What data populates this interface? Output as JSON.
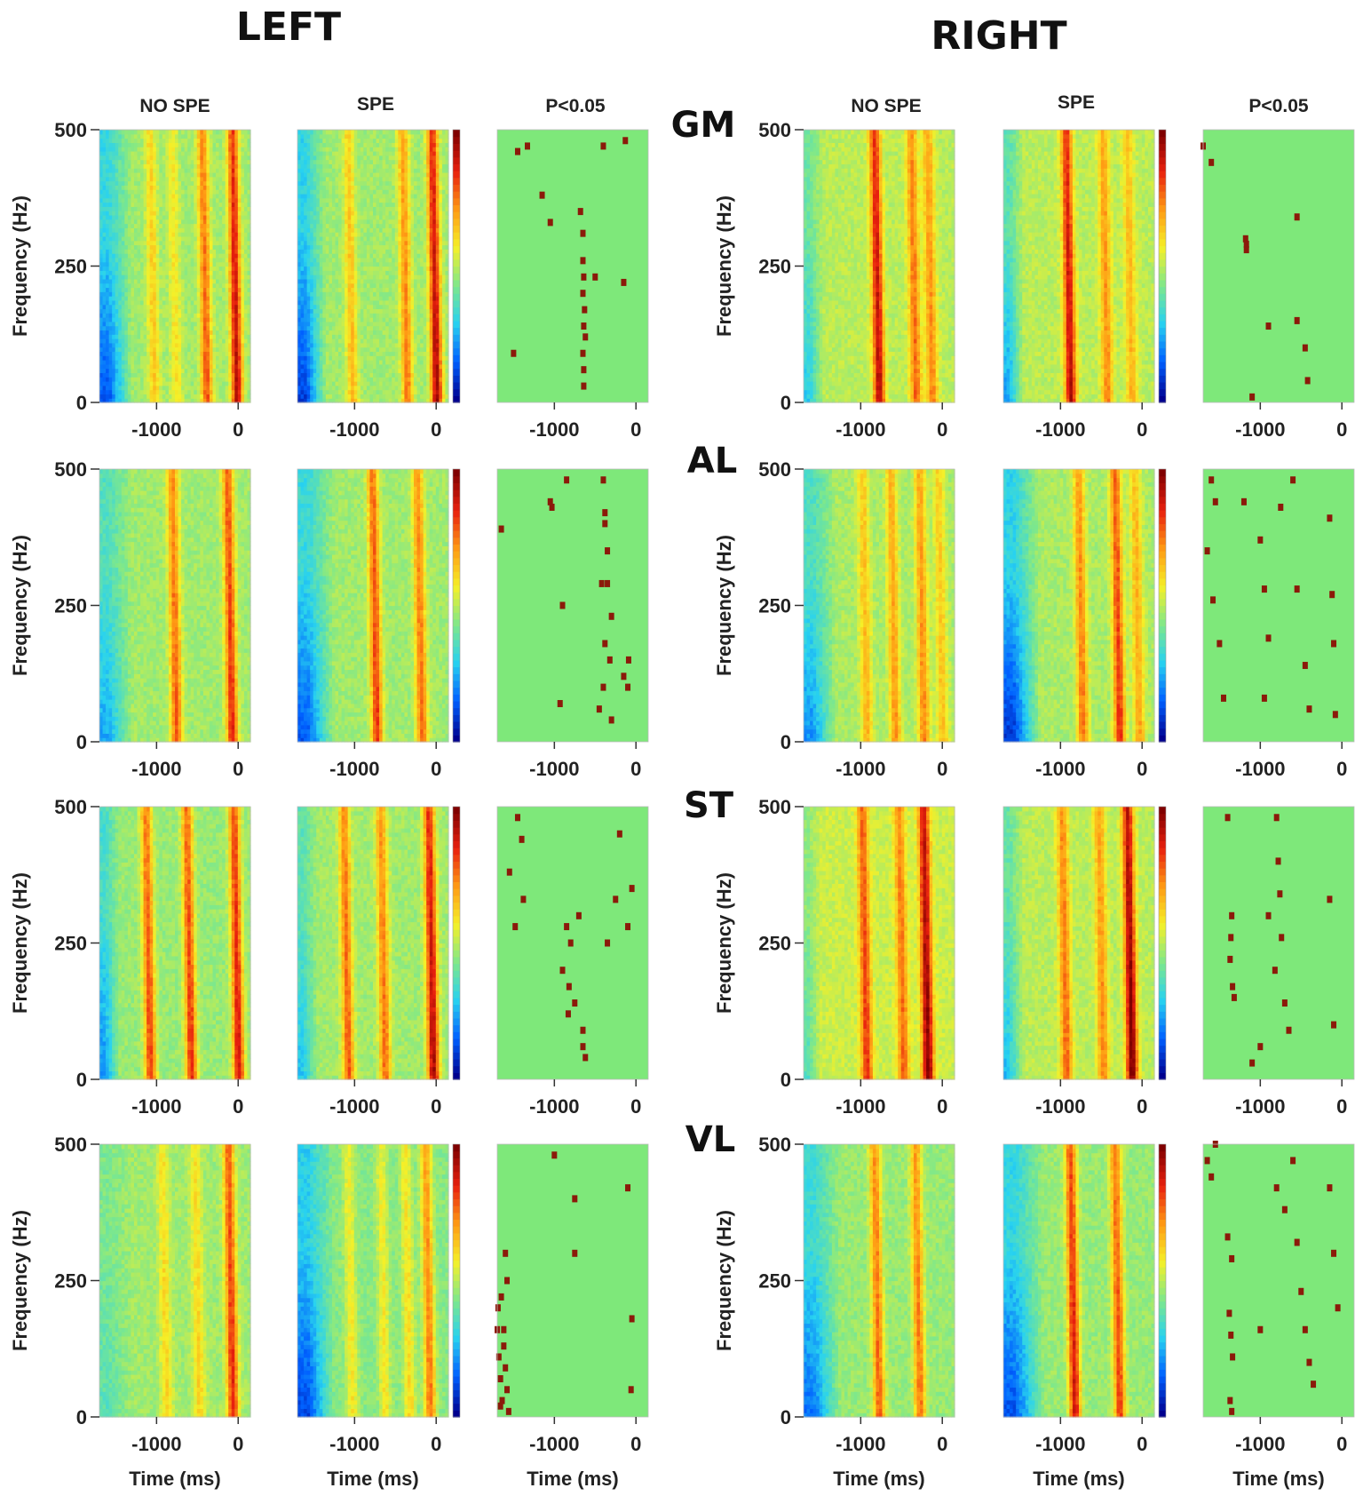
{
  "figure": {
    "side_titles": [
      "LEFT",
      "RIGHT"
    ],
    "column_titles": [
      "NO SPE",
      "SPE",
      "P<0.05"
    ],
    "muscles": [
      "GM",
      "AL",
      "ST",
      "VL"
    ],
    "colors": {
      "background": "#ffffff",
      "significance_background": "#7ee87a",
      "significance_marker": "#8b1a0a",
      "colormap": [
        "#00008f",
        "#0060ff",
        "#28d2f0",
        "#7fe88a",
        "#f5f028",
        "#ff9a14",
        "#e8200e",
        "#800000"
      ]
    }
  },
  "chart_data": {
    "type": "heatmap",
    "layout": "4 muscle rows x 2 sides x 3 columns",
    "xlabel": "Time (ms)",
    "ylabel": "Frequency (Hz)",
    "xlim": [
      -1700,
      150
    ],
    "ylim": [
      0,
      500
    ],
    "xticks": [
      -1000,
      0
    ],
    "yticks": [
      0,
      250,
      500
    ],
    "xtick_labels": [
      "-1000",
      "0"
    ],
    "ytick_labels": [
      "0",
      "250",
      "500"
    ],
    "panels": [
      {
        "side": "LEFT",
        "muscle": "GM",
        "condition": "NO SPE",
        "base": 0.47,
        "low_freq_dip": {
          "start": -1700,
          "end": -1300,
          "depth": 0.35
        },
        "bands": [
          {
            "t": -1050,
            "amp": 0.16
          },
          {
            "t": -780,
            "amp": 0.12
          },
          {
            "t": -410,
            "amp": 0.3
          },
          {
            "t": -40,
            "amp": 0.42
          }
        ]
      },
      {
        "side": "LEFT",
        "muscle": "GM",
        "condition": "SPE",
        "base": 0.47,
        "low_freq_dip": {
          "start": -1700,
          "end": -1350,
          "depth": 0.38
        },
        "bands": [
          {
            "t": -1050,
            "amp": 0.18
          },
          {
            "t": -380,
            "amp": 0.26
          },
          {
            "t": -20,
            "amp": 0.44
          }
        ]
      },
      {
        "side": "LEFT",
        "muscle": "GM",
        "condition": "P<0.05"
      },
      {
        "side": "RIGHT",
        "muscle": "GM",
        "condition": "NO SPE",
        "base": 0.5,
        "low_freq_dip": {
          "start": -1700,
          "end": -1450,
          "depth": 0.22
        },
        "bands": [
          {
            "t": -800,
            "amp": 0.4
          },
          {
            "t": -350,
            "amp": 0.26
          },
          {
            "t": -150,
            "amp": 0.22
          }
        ]
      },
      {
        "side": "RIGHT",
        "muscle": "GM",
        "condition": "SPE",
        "base": 0.5,
        "low_freq_dip": {
          "start": -1700,
          "end": -1450,
          "depth": 0.28
        },
        "bands": [
          {
            "t": -900,
            "amp": 0.4
          },
          {
            "t": -450,
            "amp": 0.22
          },
          {
            "t": -150,
            "amp": 0.16
          }
        ]
      },
      {
        "side": "RIGHT",
        "muscle": "GM",
        "condition": "P<0.05"
      },
      {
        "side": "LEFT",
        "muscle": "AL",
        "condition": "NO SPE",
        "base": 0.47,
        "low_freq_dip": {
          "start": -1700,
          "end": -1300,
          "depth": 0.24
        },
        "bands": [
          {
            "t": -780,
            "amp": 0.3
          },
          {
            "t": -100,
            "amp": 0.36
          }
        ]
      },
      {
        "side": "LEFT",
        "muscle": "AL",
        "condition": "SPE",
        "base": 0.47,
        "low_freq_dip": {
          "start": -1700,
          "end": -1250,
          "depth": 0.34
        },
        "bands": [
          {
            "t": -750,
            "amp": 0.34
          },
          {
            "t": -200,
            "amp": 0.28
          }
        ]
      },
      {
        "side": "LEFT",
        "muscle": "AL",
        "condition": "P<0.05"
      },
      {
        "side": "RIGHT",
        "muscle": "AL",
        "condition": "NO SPE",
        "base": 0.48,
        "low_freq_dip": {
          "start": -1700,
          "end": -1300,
          "depth": 0.28
        },
        "bands": [
          {
            "t": -950,
            "amp": 0.18
          },
          {
            "t": -600,
            "amp": 0.22
          },
          {
            "t": -250,
            "amp": 0.24
          },
          {
            "t": -20,
            "amp": 0.16
          }
        ]
      },
      {
        "side": "RIGHT",
        "muscle": "AL",
        "condition": "SPE",
        "base": 0.48,
        "low_freq_dip": {
          "start": -1700,
          "end": -1250,
          "depth": 0.4
        },
        "bands": [
          {
            "t": -750,
            "amp": 0.26
          },
          {
            "t": -300,
            "amp": 0.34
          },
          {
            "t": -60,
            "amp": 0.2
          }
        ]
      },
      {
        "side": "RIGHT",
        "muscle": "AL",
        "condition": "P<0.05"
      },
      {
        "side": "LEFT",
        "muscle": "ST",
        "condition": "NO SPE",
        "base": 0.46,
        "low_freq_dip": {
          "start": -1700,
          "end": -1450,
          "depth": 0.26
        },
        "bands": [
          {
            "t": -1100,
            "amp": 0.34
          },
          {
            "t": -600,
            "amp": 0.36
          },
          {
            "t": -20,
            "amp": 0.4
          }
        ]
      },
      {
        "side": "LEFT",
        "muscle": "ST",
        "condition": "SPE",
        "base": 0.47,
        "low_freq_dip": {
          "start": -1700,
          "end": -1450,
          "depth": 0.2
        },
        "bands": [
          {
            "t": -1100,
            "amp": 0.3
          },
          {
            "t": -650,
            "amp": 0.28
          },
          {
            "t": -60,
            "amp": 0.44
          }
        ]
      },
      {
        "side": "LEFT",
        "muscle": "ST",
        "condition": "P<0.05"
      },
      {
        "side": "RIGHT",
        "muscle": "ST",
        "condition": "NO SPE",
        "base": 0.52,
        "low_freq_dip": {
          "start": -1700,
          "end": -1500,
          "depth": 0.16
        },
        "bands": [
          {
            "t": -950,
            "amp": 0.3
          },
          {
            "t": -500,
            "amp": 0.24
          },
          {
            "t": -200,
            "amp": 0.44
          }
        ]
      },
      {
        "side": "RIGHT",
        "muscle": "ST",
        "condition": "SPE",
        "base": 0.5,
        "low_freq_dip": {
          "start": -1700,
          "end": -1450,
          "depth": 0.24
        },
        "bands": [
          {
            "t": -950,
            "amp": 0.26
          },
          {
            "t": -500,
            "amp": 0.22
          },
          {
            "t": -150,
            "amp": 0.48
          }
        ]
      },
      {
        "side": "RIGHT",
        "muscle": "ST",
        "condition": "P<0.05"
      },
      {
        "side": "LEFT",
        "muscle": "VL",
        "condition": "NO SPE",
        "base": 0.47,
        "low_freq_dip": {
          "start": -1700,
          "end": -1300,
          "depth": 0.1
        },
        "bands": [
          {
            "t": -900,
            "amp": 0.14
          },
          {
            "t": -500,
            "amp": 0.14
          },
          {
            "t": -90,
            "amp": 0.36
          }
        ]
      },
      {
        "side": "LEFT",
        "muscle": "VL",
        "condition": "SPE",
        "base": 0.44,
        "low_freq_dip": {
          "start": -1700,
          "end": -1250,
          "depth": 0.34
        },
        "bands": [
          {
            "t": -1050,
            "amp": 0.14
          },
          {
            "t": -650,
            "amp": 0.14
          },
          {
            "t": -350,
            "amp": 0.16
          },
          {
            "t": -100,
            "amp": 0.3
          }
        ]
      },
      {
        "side": "LEFT",
        "muscle": "VL",
        "condition": "P<0.05"
      },
      {
        "side": "RIGHT",
        "muscle": "VL",
        "condition": "NO SPE",
        "base": 0.46,
        "low_freq_dip": {
          "start": -1700,
          "end": -1250,
          "depth": 0.3
        },
        "bands": [
          {
            "t": -800,
            "amp": 0.3
          },
          {
            "t": -300,
            "amp": 0.28
          }
        ]
      },
      {
        "side": "RIGHT",
        "muscle": "VL",
        "condition": "SPE",
        "base": 0.46,
        "low_freq_dip": {
          "start": -1700,
          "end": -1200,
          "depth": 0.34
        },
        "bands": [
          {
            "t": -850,
            "amp": 0.4
          },
          {
            "t": -300,
            "amp": 0.34
          }
        ]
      },
      {
        "side": "RIGHT",
        "muscle": "VL",
        "condition": "P<0.05"
      }
    ],
    "significant_points": {
      "LEFT-GM": [
        [
          -1450,
          460
        ],
        [
          -1330,
          470
        ],
        [
          -1150,
          380
        ],
        [
          -1050,
          330
        ],
        [
          -680,
          350
        ],
        [
          -650,
          310
        ],
        [
          -650,
          260
        ],
        [
          -640,
          230
        ],
        [
          -650,
          200
        ],
        [
          -630,
          170
        ],
        [
          -640,
          140
        ],
        [
          -620,
          120
        ],
        [
          -650,
          90
        ],
        [
          -640,
          60
        ],
        [
          -640,
          30
        ],
        [
          -500,
          230
        ],
        [
          -400,
          470
        ],
        [
          -150,
          220
        ],
        [
          -130,
          480
        ],
        [
          -1500,
          90
        ]
      ],
      "LEFT-AL": [
        [
          -1650,
          390
        ],
        [
          -1050,
          440
        ],
        [
          -1030,
          430
        ],
        [
          -900,
          250
        ],
        [
          -930,
          70
        ],
        [
          -850,
          480
        ],
        [
          -400,
          480
        ],
        [
          -380,
          420
        ],
        [
          -380,
          400
        ],
        [
          -350,
          290
        ],
        [
          -420,
          290
        ],
        [
          -300,
          230
        ],
        [
          -380,
          180
        ],
        [
          -320,
          150
        ],
        [
          -400,
          100
        ],
        [
          -450,
          60
        ],
        [
          -300,
          40
        ],
        [
          -100,
          100
        ],
        [
          -90,
          150
        ],
        [
          -350,
          350
        ],
        [
          -150,
          120
        ]
      ],
      "LEFT-ST": [
        [
          -1450,
          480
        ],
        [
          -1400,
          440
        ],
        [
          -1550,
          380
        ],
        [
          -1380,
          330
        ],
        [
          -1480,
          280
        ],
        [
          -850,
          280
        ],
        [
          -800,
          250
        ],
        [
          -900,
          200
        ],
        [
          -820,
          170
        ],
        [
          -750,
          140
        ],
        [
          -830,
          120
        ],
        [
          -700,
          300
        ],
        [
          -650,
          90
        ],
        [
          -620,
          40
        ],
        [
          -650,
          60
        ],
        [
          -250,
          330
        ],
        [
          -350,
          250
        ],
        [
          -100,
          280
        ],
        [
          -50,
          350
        ],
        [
          -200,
          450
        ]
      ],
      "LEFT-VL": [
        [
          -1700,
          160
        ],
        [
          -1680,
          110
        ],
        [
          -1660,
          70
        ],
        [
          -1640,
          30
        ],
        [
          -1620,
          130
        ],
        [
          -1600,
          90
        ],
        [
          -1580,
          50
        ],
        [
          -1560,
          10
        ],
        [
          -1690,
          200
        ],
        [
          -1650,
          220
        ],
        [
          -1600,
          300
        ],
        [
          -1580,
          250
        ],
        [
          -1620,
          160
        ],
        [
          -1660,
          20
        ],
        [
          -1000,
          480
        ],
        [
          -750,
          400
        ],
        [
          -750,
          300
        ],
        [
          -100,
          420
        ],
        [
          -50,
          180
        ],
        [
          -60,
          50
        ]
      ],
      "RIGHT-GM": [
        [
          -1700,
          470
        ],
        [
          -1600,
          440
        ],
        [
          -1180,
          300
        ],
        [
          -1170,
          290
        ],
        [
          -1170,
          280
        ],
        [
          -900,
          140
        ],
        [
          -550,
          340
        ],
        [
          -550,
          150
        ],
        [
          -450,
          100
        ],
        [
          -420,
          40
        ],
        [
          -1100,
          10
        ]
      ],
      "RIGHT-AL": [
        [
          -1600,
          480
        ],
        [
          -1550,
          440
        ],
        [
          -1650,
          350
        ],
        [
          -1580,
          260
        ],
        [
          -1500,
          180
        ],
        [
          -1450,
          80
        ],
        [
          -1200,
          440
        ],
        [
          -1000,
          370
        ],
        [
          -950,
          280
        ],
        [
          -900,
          190
        ],
        [
          -950,
          80
        ],
        [
          -750,
          430
        ],
        [
          -600,
          480
        ],
        [
          -550,
          280
        ],
        [
          -450,
          140
        ],
        [
          -400,
          60
        ],
        [
          -150,
          410
        ],
        [
          -120,
          270
        ],
        [
          -100,
          180
        ],
        [
          -80,
          50
        ]
      ],
      "RIGHT-ST": [
        [
          -1400,
          480
        ],
        [
          -1350,
          300
        ],
        [
          -1360,
          260
        ],
        [
          -1370,
          220
        ],
        [
          -1340,
          170
        ],
        [
          -1320,
          150
        ],
        [
          -800,
          480
        ],
        [
          -780,
          400
        ],
        [
          -760,
          340
        ],
        [
          -740,
          260
        ],
        [
          -820,
          200
        ],
        [
          -700,
          140
        ],
        [
          -650,
          90
        ],
        [
          -900,
          300
        ],
        [
          -1000,
          60
        ],
        [
          -1100,
          30
        ],
        [
          -150,
          330
        ],
        [
          -100,
          100
        ]
      ],
      "RIGHT-VL": [
        [
          -1650,
          470
        ],
        [
          -1600,
          440
        ],
        [
          -1550,
          500
        ],
        [
          -1400,
          330
        ],
        [
          -1350,
          290
        ],
        [
          -1380,
          190
        ],
        [
          -1360,
          150
        ],
        [
          -1340,
          110
        ],
        [
          -1370,
          30
        ],
        [
          -1350,
          10
        ],
        [
          -800,
          420
        ],
        [
          -700,
          380
        ],
        [
          -600,
          470
        ],
        [
          -550,
          320
        ],
        [
          -500,
          230
        ],
        [
          -450,
          160
        ],
        [
          -400,
          100
        ],
        [
          -350,
          60
        ],
        [
          -150,
          420
        ],
        [
          -100,
          300
        ],
        [
          -50,
          200
        ],
        [
          -1000,
          160
        ]
      ]
    }
  }
}
